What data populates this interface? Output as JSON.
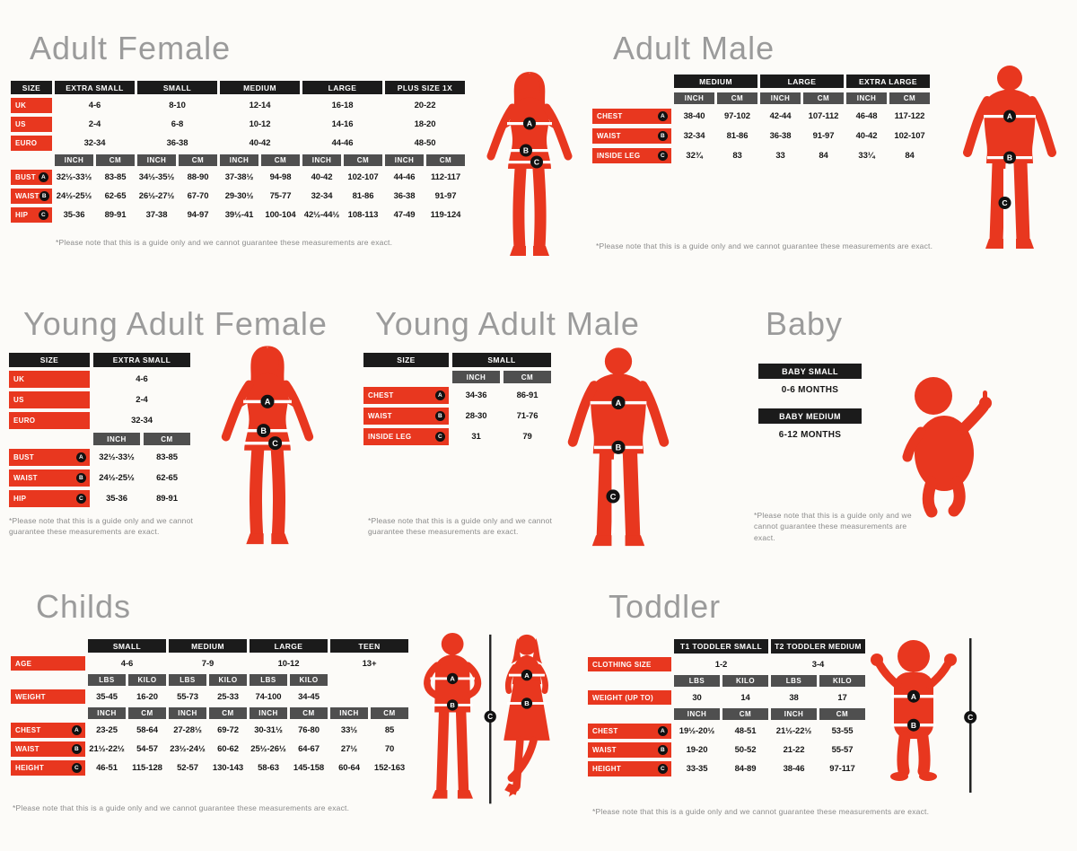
{
  "markers": {
    "a": "A",
    "b": "B",
    "c": "C"
  },
  "colors": {
    "red": "#e8371f",
    "black_bar": "#1b1b1b",
    "gray_bar": "#4f4f4f",
    "title_gray": "#9b9b9b"
  },
  "af": {
    "title": "Adult Female",
    "size_header": "SIZE",
    "sizes": [
      "EXTRA SMALL",
      "SMALL",
      "MEDIUM",
      "LARGE",
      "PLUS SIZE 1X"
    ],
    "size_rows": [
      {
        "label": "UK",
        "values": [
          "4-6",
          "8-10",
          "12-14",
          "16-18",
          "20-22"
        ]
      },
      {
        "label": "US",
        "values": [
          "2-4",
          "6-8",
          "10-12",
          "14-16",
          "18-20"
        ]
      },
      {
        "label": "EURO",
        "values": [
          "32-34",
          "36-38",
          "40-42",
          "44-46",
          "48-50"
        ]
      }
    ],
    "units": [
      "INCH",
      "CM",
      "INCH",
      "CM",
      "INCH",
      "CM",
      "INCH",
      "CM",
      "INCH",
      "CM"
    ],
    "rows": [
      {
        "label": "BUST",
        "marker": "A",
        "values": [
          "32½-33½",
          "83-85",
          "34½-35½",
          "88-90",
          "37-38½",
          "94-98",
          "40-42",
          "102-107",
          "44-46",
          "112-117"
        ]
      },
      {
        "label": "WAIST",
        "marker": "B",
        "values": [
          "24½-25½",
          "62-65",
          "26½-27½",
          "67-70",
          "29-30½",
          "75-77",
          "32-34",
          "81-86",
          "36-38",
          "91-97"
        ]
      },
      {
        "label": "HIP",
        "marker": "C",
        "values": [
          "35-36",
          "89-91",
          "37-38",
          "94-97",
          "39½-41",
          "100-104",
          "42½-44½",
          "108-113",
          "47-49",
          "119-124"
        ]
      }
    ],
    "note": "*Please note that this is a guide only and we cannot guarantee these measurements are exact."
  },
  "am": {
    "title": "Adult Male",
    "sizes": [
      "MEDIUM",
      "LARGE",
      "EXTRA LARGE"
    ],
    "units": [
      "INCH",
      "CM",
      "INCH",
      "CM",
      "INCH",
      "CM"
    ],
    "rows": [
      {
        "label": "CHEST",
        "marker": "A",
        "values": [
          "38-40",
          "97-102",
          "42-44",
          "107-112",
          "46-48",
          "117-122"
        ]
      },
      {
        "label": "WAIST",
        "marker": "B",
        "values": [
          "32-34",
          "81-86",
          "36-38",
          "91-97",
          "40-42",
          "102-107"
        ]
      },
      {
        "label": "INSIDE LEG",
        "marker": "C",
        "values": [
          "32¾",
          "83",
          "33",
          "84",
          "33¼",
          "84"
        ]
      }
    ],
    "note": "*Please note that this is a guide only and we cannot guarantee these measurements are exact."
  },
  "yaf": {
    "title": "Young Adult Female",
    "size_header": "SIZE",
    "sizes": [
      "EXTRA SMALL"
    ],
    "size_rows": [
      {
        "label": "UK",
        "values": [
          "4-6"
        ]
      },
      {
        "label": "US",
        "values": [
          "2-4"
        ]
      },
      {
        "label": "EURO",
        "values": [
          "32-34"
        ]
      }
    ],
    "units": [
      "INCH",
      "CM"
    ],
    "rows": [
      {
        "label": "BUST",
        "marker": "A",
        "values": [
          "32½-33½",
          "83-85"
        ]
      },
      {
        "label": "WAIST",
        "marker": "B",
        "values": [
          "24½-25½",
          "62-65"
        ]
      },
      {
        "label": "HIP",
        "marker": "C",
        "values": [
          "35-36",
          "89-91"
        ]
      }
    ],
    "note": "*Please note that this is a guide only and we cannot guarantee these measurements are exact."
  },
  "yam": {
    "title": "Young Adult Male",
    "size_header": "SIZE",
    "sizes": [
      "SMALL"
    ],
    "units": [
      "INCH",
      "CM"
    ],
    "rows": [
      {
        "label": "CHEST",
        "marker": "A",
        "values": [
          "34-36",
          "86-91"
        ]
      },
      {
        "label": "WAIST",
        "marker": "B",
        "values": [
          "28-30",
          "71-76"
        ]
      },
      {
        "label": "INSIDE LEG",
        "marker": "C",
        "values": [
          "31",
          "79"
        ]
      }
    ],
    "note": "*Please note that this is a guide only and we cannot guarantee these measurements are exact."
  },
  "baby": {
    "title": "Baby",
    "entries": [
      {
        "label": "BABY SMALL",
        "value": "0-6 MONTHS"
      },
      {
        "label": "BABY MEDIUM",
        "value": "6-12 MONTHS"
      }
    ],
    "note": "*Please note that this is a guide only and we cannot guarantee these measurements are exact."
  },
  "childs": {
    "title": "Childs",
    "sizes": [
      "SMALL",
      "MEDIUM",
      "LARGE",
      "TEEN"
    ],
    "age_row": {
      "label": "AGE",
      "values": [
        "4-6",
        "7-9",
        "10-12",
        "13+"
      ]
    },
    "weight_units": [
      "LBS",
      "KILO",
      "LBS",
      "KILO",
      "LBS",
      "KILO"
    ],
    "weight_row": {
      "label": "WEIGHT",
      "values": [
        "35-45",
        "16-20",
        "55-73",
        "25-33",
        "74-100",
        "34-45"
      ]
    },
    "units": [
      "INCH",
      "CM",
      "INCH",
      "CM",
      "INCH",
      "CM",
      "INCH",
      "CM"
    ],
    "rows": [
      {
        "label": "CHEST",
        "marker": "A",
        "values": [
          "23-25",
          "58-64",
          "27-28½",
          "69-72",
          "30-31½",
          "76-80",
          "33½",
          "85"
        ]
      },
      {
        "label": "WAIST",
        "marker": "B",
        "values": [
          "21½-22½",
          "54-57",
          "23½-24½",
          "60-62",
          "25½-26½",
          "64-67",
          "27½",
          "70"
        ]
      },
      {
        "label": "HEIGHT",
        "marker": "C",
        "values": [
          "46-51",
          "115-128",
          "52-57",
          "130-143",
          "58-63",
          "145-158",
          "60-64",
          "152-163"
        ]
      }
    ],
    "note": "*Please note that this is a guide only and we cannot guarantee these measurements are exact."
  },
  "toddler": {
    "title": "Toddler",
    "sizes": [
      "T1 TODDLER SMALL",
      "T2 TODDLER MEDIUM"
    ],
    "size_row": {
      "label": "CLOTHING SIZE",
      "values": [
        "1-2",
        "3-4"
      ]
    },
    "weight_units": [
      "LBS",
      "KILO",
      "LBS",
      "KILO"
    ],
    "weight_row": {
      "label": "WEIGHT (UP TO)",
      "values": [
        "30",
        "14",
        "38",
        "17"
      ]
    },
    "units": [
      "INCH",
      "CM",
      "INCH",
      "CM"
    ],
    "rows": [
      {
        "label": "CHEST",
        "marker": "A",
        "values": [
          "19½-20½",
          "48-51",
          "21½-22½",
          "53-55"
        ]
      },
      {
        "label": "WAIST",
        "marker": "B",
        "values": [
          "19-20",
          "50-52",
          "21-22",
          "55-57"
        ]
      },
      {
        "label": "HEIGHT",
        "marker": "C",
        "values": [
          "33-35",
          "84-89",
          "38-46",
          "97-117"
        ]
      }
    ],
    "note": "*Please note that this is a guide only and we cannot guarantee these measurements are exact."
  }
}
